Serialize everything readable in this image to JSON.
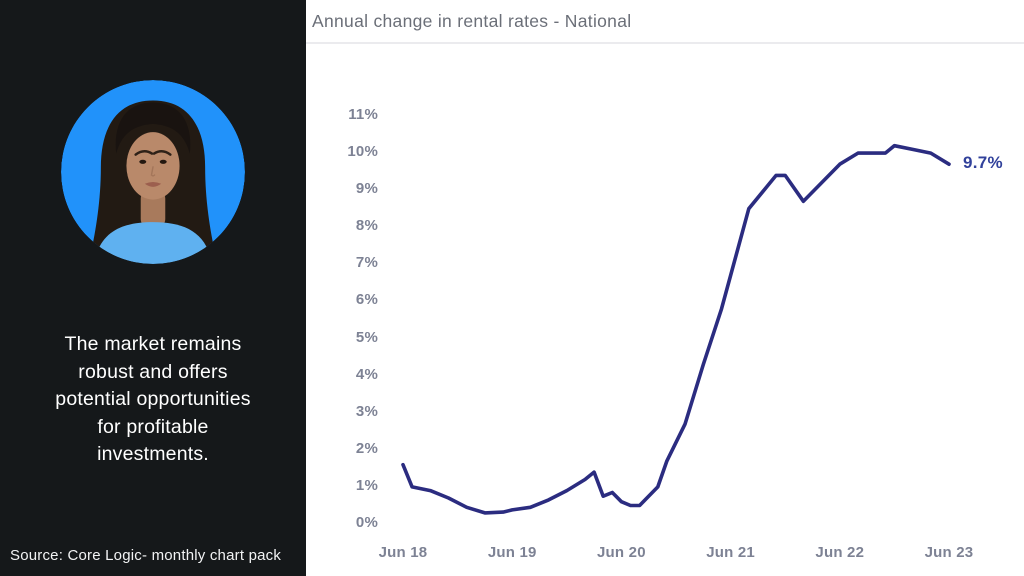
{
  "left_panel": {
    "background_color": "#15181a",
    "avatar": {
      "description": "woman-portrait-in-blue-circle",
      "circle_color": "#2192fa",
      "blouse_color": "#5fb1f0",
      "skin_color": "#b9896a",
      "hair_color": "#221a13"
    },
    "quote_lines": [
      "The market remains",
      "robust and offers",
      "potential opportunities",
      "for profitable",
      "investments."
    ],
    "quote_full": "The market remains robust and offers potential opportunities for profitable investments.",
    "source": "Source: Core Logic- monthly chart pack"
  },
  "chart": {
    "title": "Annual change in rental rates - National",
    "colors": {
      "line": "#2b2c80",
      "end_label": "#31419b",
      "axis_text": "#7d8294",
      "title_text": "#6b6f78",
      "divider": "#ebebee",
      "panel_bg": "#ffffff"
    }
  },
  "chart_data": {
    "type": "line",
    "title": "Annual change in rental rates - National",
    "xlabel": "",
    "ylabel": "",
    "unit": "%",
    "grid": false,
    "legend": false,
    "ylim": [
      0,
      11
    ],
    "y_tick_labels": [
      "0%",
      "1%",
      "2%",
      "3%",
      "4%",
      "5%",
      "6%",
      "7%",
      "8%",
      "9%",
      "10%",
      "11%"
    ],
    "x_tick_labels": [
      "Jun 18",
      "Jun 19",
      "Jun 20",
      "Jun 21",
      "Jun 22",
      "Jun 23"
    ],
    "annotation": {
      "text": "9.7%",
      "at": "Jun 23",
      "value": 9.7
    },
    "series": [
      {
        "name": "Annual change in rental rates - National",
        "points": [
          {
            "m": 0,
            "date": "Jun 18",
            "value": 1.6
          },
          {
            "m": 1,
            "date": "Jul 18",
            "value": 1.0
          },
          {
            "m": 3,
            "date": "Sep 18",
            "value": 0.9
          },
          {
            "m": 5,
            "date": "Nov 18",
            "value": 0.7
          },
          {
            "m": 7,
            "date": "Jan 19",
            "value": 0.45
          },
          {
            "m": 9,
            "date": "Mar 19",
            "value": 0.3
          },
          {
            "m": 11,
            "date": "May 19",
            "value": 0.32
          },
          {
            "m": 12,
            "date": "Jun 19",
            "value": 0.38
          },
          {
            "m": 14,
            "date": "Aug 19",
            "value": 0.45
          },
          {
            "m": 16,
            "date": "Oct 19",
            "value": 0.65
          },
          {
            "m": 18,
            "date": "Dec 19",
            "value": 0.9
          },
          {
            "m": 20,
            "date": "Feb 20",
            "value": 1.2
          },
          {
            "m": 21,
            "date": "Mar 20",
            "value": 1.4
          },
          {
            "m": 22,
            "date": "Apr 20",
            "value": 0.75
          },
          {
            "m": 23,
            "date": "May 20",
            "value": 0.85
          },
          {
            "m": 24,
            "date": "Jun 20",
            "value": 0.6
          },
          {
            "m": 25,
            "date": "Jul 20",
            "value": 0.5
          },
          {
            "m": 26,
            "date": "Aug 20",
            "value": 0.5
          },
          {
            "m": 28,
            "date": "Oct 20",
            "value": 1.0
          },
          {
            "m": 29,
            "date": "Nov 20",
            "value": 1.7
          },
          {
            "m": 31,
            "date": "Jan 21",
            "value": 2.7
          },
          {
            "m": 33,
            "date": "Mar 21",
            "value": 4.3
          },
          {
            "m": 35,
            "date": "May 21",
            "value": 5.8
          },
          {
            "m": 36,
            "date": "Jun 21",
            "value": 6.7
          },
          {
            "m": 38,
            "date": "Aug 21",
            "value": 8.5
          },
          {
            "m": 40,
            "date": "Oct 21",
            "value": 9.1
          },
          {
            "m": 41,
            "date": "Nov 21",
            "value": 9.4
          },
          {
            "m": 42,
            "date": "Dec 21",
            "value": 9.4
          },
          {
            "m": 44,
            "date": "Feb 22",
            "value": 8.7
          },
          {
            "m": 46,
            "date": "Apr 22",
            "value": 9.2
          },
          {
            "m": 48,
            "date": "Jun 22",
            "value": 9.7
          },
          {
            "m": 50,
            "date": "Aug 22",
            "value": 10.0
          },
          {
            "m": 53,
            "date": "Nov 22",
            "value": 10.0
          },
          {
            "m": 54,
            "date": "Dec 22",
            "value": 10.2
          },
          {
            "m": 56,
            "date": "Feb 23",
            "value": 10.1
          },
          {
            "m": 58,
            "date": "Apr 23",
            "value": 10.0
          },
          {
            "m": 60,
            "date": "Jun 23",
            "value": 9.7
          }
        ]
      }
    ]
  }
}
